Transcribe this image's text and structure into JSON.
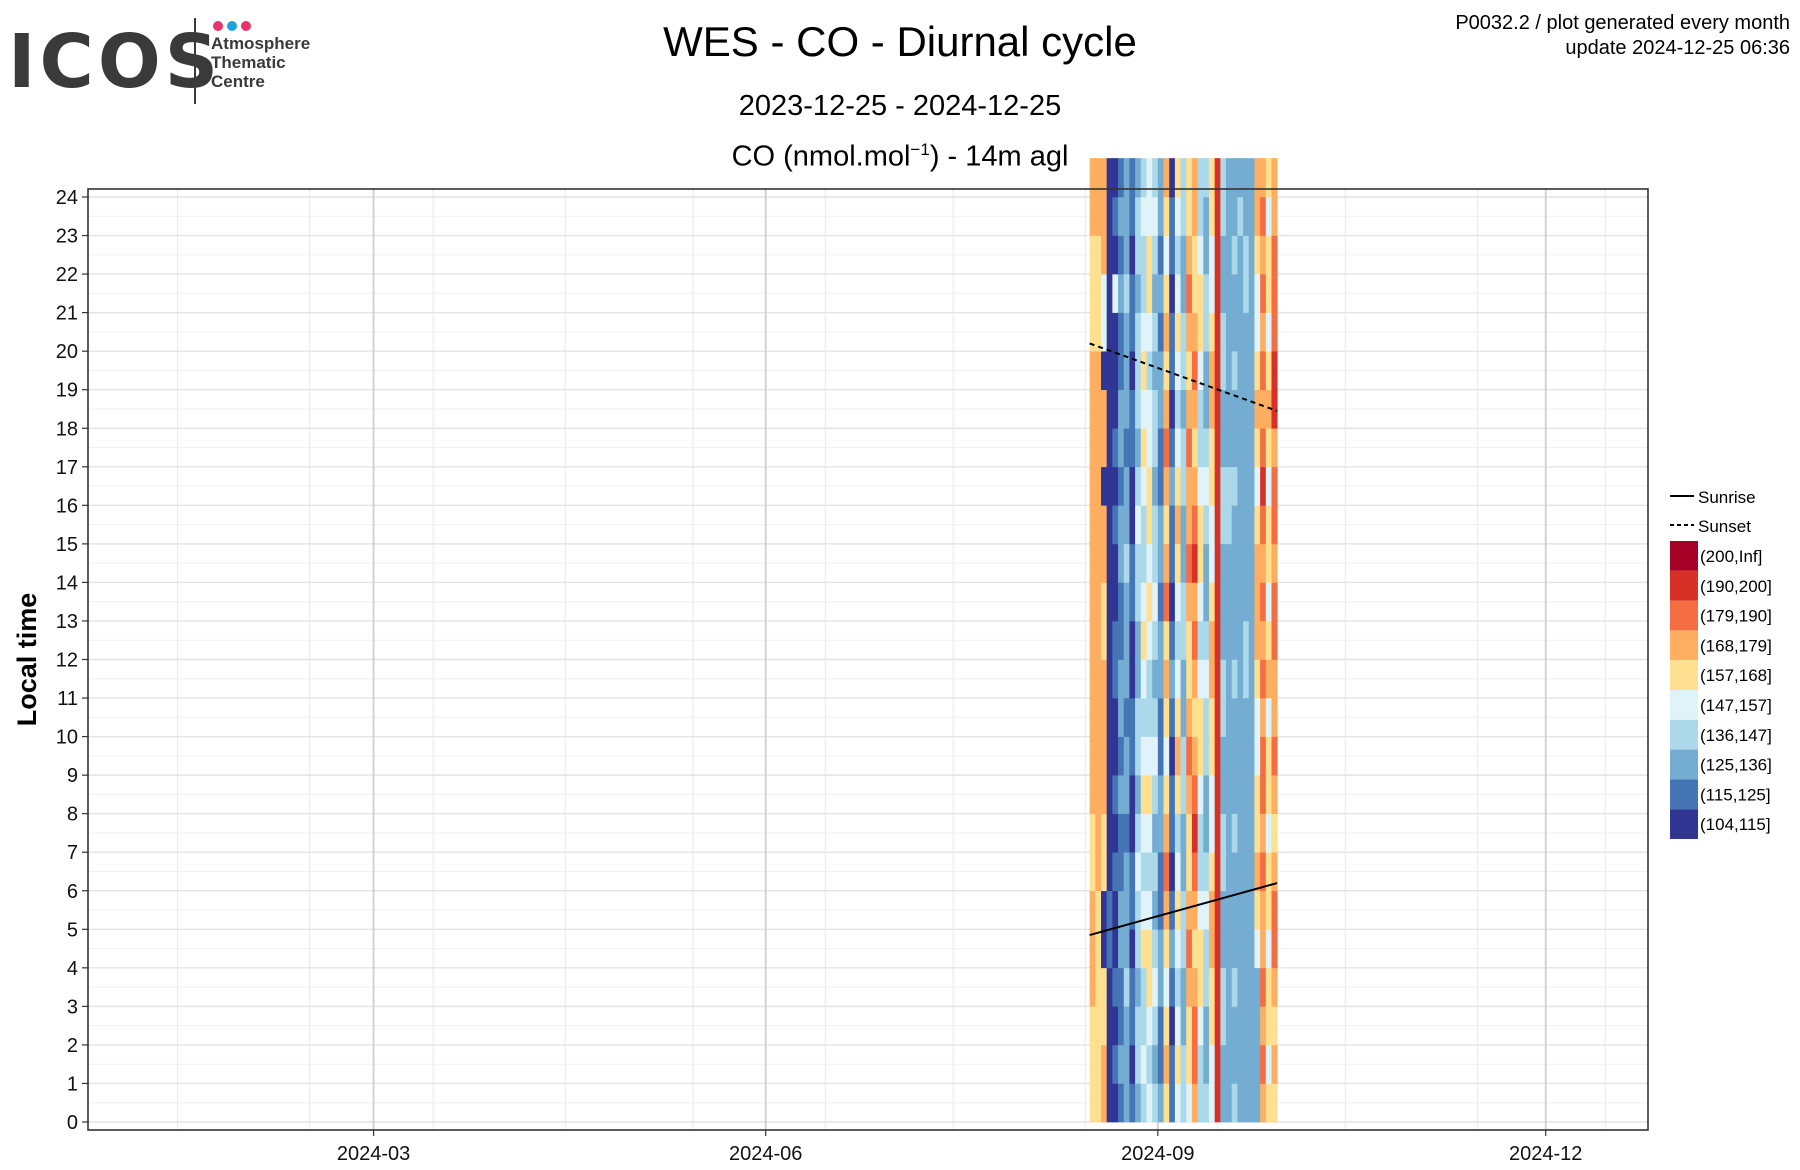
{
  "header": {
    "title": "WES - CO - Diurnal cycle",
    "subtitle": "2023-12-25 - 2024-12-25",
    "variable_title_pre": "CO (nmol.mol",
    "variable_title_sup": "−1",
    "variable_title_post": ") - 14m agl",
    "corner_line1": "P0032.2 / plot generated every month",
    "corner_line2": "update  2024-12-25 06:36"
  },
  "logo": {
    "word": "ICOS",
    "line1": "Atmosphere",
    "line2": "Thematic",
    "line3": "Centre",
    "dot_colors": [
      "#e8336d",
      "#1fa3de",
      "#e8336d"
    ]
  },
  "chart_data": {
    "type": "heatmap",
    "ylabel": "Local time",
    "xlabel": "",
    "xlim": [
      "2023-12-25",
      "2024-12-25"
    ],
    "ylim": [
      0,
      24
    ],
    "x_ticks": [
      "2024-03",
      "2024-06",
      "2024-09",
      "2024-12"
    ],
    "y_ticks": [
      "0",
      "1",
      "2",
      "3",
      "4",
      "5",
      "6",
      "7",
      "8",
      "9",
      "10",
      "11",
      "12",
      "13",
      "14",
      "15",
      "16",
      "17",
      "18",
      "19",
      "20",
      "21",
      "22",
      "23",
      "24"
    ],
    "grid": true,
    "legend_position": "right",
    "legend_lines": [
      {
        "label": "Sunrise",
        "style": "solid"
      },
      {
        "label": "Sunset",
        "style": "dashed"
      }
    ],
    "bins": [
      {
        "label": "(200,Inf]",
        "color": "#a50026"
      },
      {
        "label": "(190,200]",
        "color": "#d73027"
      },
      {
        "label": "(179,190]",
        "color": "#f46d43"
      },
      {
        "label": "(168,179]",
        "color": "#fdae61"
      },
      {
        "label": "(157,168]",
        "color": "#fee090"
      },
      {
        "label": "(147,157]",
        "color": "#e0f3f8"
      },
      {
        "label": "(136,147]",
        "color": "#abd9e9"
      },
      {
        "label": "(125,136]",
        "color": "#74add1"
      },
      {
        "label": "(115,125]",
        "color": "#4575b4"
      },
      {
        "label": "(104,115]",
        "color": "#313695"
      }
    ],
    "data_period": {
      "start": "2024-08-16",
      "end": "2024-09-29"
    },
    "sunrise": [
      {
        "date": "2024-08-16",
        "hour": 4.85
      },
      {
        "date": "2024-09-29",
        "hour": 6.2
      }
    ],
    "sunset": [
      {
        "date": "2024-08-16",
        "hour": 20.2
      },
      {
        "date": "2024-09-29",
        "hour": 18.45
      }
    ],
    "columns": [
      [
        "4",
        "4",
        "4",
        "3",
        "3",
        "3",
        "4",
        "4",
        "3",
        "3",
        "3",
        "3",
        "3",
        "3",
        "3",
        "3",
        "3",
        "3",
        "3",
        "3",
        "4",
        "4",
        "4",
        "3",
        "3"
      ],
      [
        "4",
        "4",
        "4",
        "4",
        "4",
        "4",
        "3",
        "3",
        "3",
        "3",
        "3",
        "3",
        "3",
        "3",
        "3",
        "3",
        "3",
        "3",
        "3",
        "3",
        "4",
        "4",
        "4",
        "3",
        "3"
      ],
      [
        "3",
        "3",
        "4",
        "4",
        "9",
        "9",
        "4",
        "4",
        "3",
        "3",
        "3",
        "3",
        "4",
        "4",
        "3",
        "3",
        "9",
        "3",
        "3",
        "9",
        "5",
        "5",
        "3",
        "3",
        "3"
      ],
      [
        "9",
        "9",
        "9",
        "9",
        "8",
        "8",
        "9",
        "9",
        "9",
        "9",
        "9",
        "9",
        "9",
        "9",
        "9",
        "9",
        "9",
        "9",
        "9",
        "9",
        "9",
        "9",
        "9",
        "9",
        "9"
      ],
      [
        "9",
        "8",
        "9",
        "8",
        "9",
        "9",
        "8",
        "9",
        "8",
        "9",
        "9",
        "8",
        "8",
        "9",
        "9",
        "8",
        "9",
        "8",
        "9",
        "9",
        "9",
        "5",
        "9",
        "8",
        "9"
      ],
      [
        "8",
        "7",
        "8",
        "8",
        "7",
        "7",
        "8",
        "8",
        "7",
        "8",
        "7",
        "7",
        "8",
        "8",
        "7",
        "7",
        "8",
        "7",
        "7",
        "8",
        "8",
        "7",
        "8",
        "7",
        "8"
      ],
      [
        "7",
        "7",
        "7",
        "6",
        "7",
        "7",
        "7",
        "8",
        "7",
        "7",
        "8",
        "7",
        "7",
        "7",
        "6",
        "7",
        "7",
        "8",
        "7",
        "7",
        "7",
        "6",
        "7",
        "7",
        "7"
      ],
      [
        "8",
        "9",
        "8",
        "8",
        "9",
        "8",
        "8",
        "9",
        "9",
        "8",
        "8",
        "9",
        "9",
        "8",
        "8",
        "9",
        "9",
        "8",
        "8",
        "9",
        "8",
        "8",
        "9",
        "8",
        "8"
      ],
      [
        "7",
        "6",
        "6",
        "7",
        "6",
        "6",
        "5",
        "6",
        "7",
        "6",
        "6",
        "7",
        "7",
        "6",
        "6",
        "5",
        "6",
        "7",
        "6",
        "6",
        "6",
        "7",
        "6",
        "6",
        "7"
      ],
      [
        "6",
        "5",
        "6",
        "6",
        "4",
        "5",
        "6",
        "5",
        "4",
        "5",
        "6",
        "5",
        "4",
        "5",
        "6",
        "6",
        "5",
        "4",
        "5",
        "4",
        "5",
        "6",
        "6",
        "5",
        "6"
      ],
      [
        "5",
        "6",
        "5",
        "4",
        "4",
        "5",
        "6",
        "5",
        "4",
        "5",
        "6",
        "6",
        "5",
        "4",
        "5",
        "4",
        "4",
        "5",
        "5",
        "6",
        "5",
        "4",
        "4",
        "5",
        "5"
      ],
      [
        "6",
        "7",
        "6",
        "5",
        "6",
        "7",
        "6",
        "7",
        "6",
        "5",
        "6",
        "7",
        "6",
        "5",
        "6",
        "6",
        "7",
        "6",
        "6",
        "7",
        "6",
        "7",
        "6",
        "5",
        "6"
      ],
      [
        "7",
        "8",
        "8",
        "7",
        "7",
        "8",
        "8",
        "7",
        "7",
        "8",
        "8",
        "7",
        "7",
        "8",
        "7",
        "7",
        "8",
        "8",
        "7",
        "7",
        "8",
        "7",
        "8",
        "7",
        "7"
      ],
      [
        "4",
        "3",
        "4",
        "5",
        "4",
        "3",
        "2",
        "3",
        "4",
        "5",
        "4",
        "3",
        "4",
        "2",
        "3",
        "4",
        "3",
        "2",
        "3",
        "4",
        "3",
        "4",
        "5",
        "4",
        "3"
      ],
      [
        "8",
        "8",
        "9",
        "8",
        "7",
        "8",
        "9",
        "8",
        "8",
        "9",
        "8",
        "7",
        "8",
        "9",
        "8",
        "8",
        "7",
        "8",
        "9",
        "8",
        "8",
        "9",
        "8",
        "8",
        "9"
      ],
      [
        "5",
        "4",
        "5",
        "6",
        "5",
        "4",
        "5",
        "6",
        "4",
        "3",
        "4",
        "5",
        "6",
        "5",
        "4",
        "3",
        "4",
        "5",
        "6",
        "5",
        "4",
        "5",
        "6",
        "5",
        "4"
      ],
      [
        "6",
        "6",
        "7",
        "7",
        "6",
        "6",
        "7",
        "7",
        "6",
        "6",
        "7",
        "7",
        "6",
        "6",
        "7",
        "7",
        "6",
        "6",
        "7",
        "6",
        "6",
        "7",
        "7",
        "6",
        "6"
      ],
      [
        "5",
        "4",
        "4",
        "3",
        "2",
        "3",
        "4",
        "4",
        "3",
        "2",
        "3",
        "4",
        "4",
        "3",
        "2",
        "3",
        "3",
        "2",
        "3",
        "4",
        "3",
        "2",
        "3",
        "4",
        "4"
      ],
      [
        "3",
        "2",
        "2",
        "3",
        "4",
        "3",
        "2",
        "1",
        "2",
        "3",
        "4",
        "3",
        "2",
        "3",
        "1",
        "2",
        "3",
        "4",
        "3",
        "2",
        "3",
        "4",
        "4",
        "3",
        "3"
      ],
      [
        "6",
        "6",
        "5",
        "4",
        "4",
        "5",
        "6",
        "6",
        "5",
        "4",
        "4",
        "5",
        "6",
        "5",
        "4",
        "4",
        "5",
        "6",
        "6",
        "5",
        "4",
        "4",
        "5",
        "6",
        "6"
      ],
      [
        "6",
        "7",
        "7",
        "6",
        "6",
        "5",
        "6",
        "7",
        "7",
        "6",
        "6",
        "5",
        "6",
        "7",
        "7",
        "6",
        "5",
        "6",
        "7",
        "7",
        "6",
        "6",
        "7",
        "7",
        "6"
      ],
      [
        "5",
        "5",
        "4",
        "4",
        "3",
        "3",
        "4",
        "5",
        "5",
        "4",
        "4",
        "3",
        "3",
        "4",
        "5",
        "5",
        "4",
        "4",
        "3",
        "3",
        "4",
        "5",
        "5",
        "4",
        "4"
      ],
      [
        "1",
        "1",
        "1",
        "1",
        "1",
        "1",
        "1",
        "1",
        "1",
        "1",
        "1",
        "1",
        "1",
        "1",
        "1",
        "1",
        "1",
        "1",
        "1",
        "1",
        "1",
        "1",
        "1",
        "1",
        "1"
      ],
      [
        "7",
        "7",
        "6",
        "6",
        "7",
        "7",
        "6",
        "6",
        "7",
        "7",
        "6",
        "6",
        "7",
        "7",
        "7",
        "6",
        "6",
        "7",
        "7",
        "6",
        "6",
        "7",
        "7",
        "6",
        "6"
      ],
      [
        "7",
        "7",
        "7",
        "7",
        "7",
        "7",
        "7",
        "7",
        "7",
        "7",
        "7",
        "7",
        "7",
        "7",
        "7",
        "6",
        "6",
        "7",
        "7",
        "7",
        "7",
        "7",
        "7",
        "7",
        "7"
      ],
      [
        "6",
        "7",
        "7",
        "6",
        "7",
        "7",
        "7",
        "6",
        "7",
        "7",
        "7",
        "6",
        "7",
        "7",
        "7",
        "7",
        "6",
        "7",
        "7",
        "6",
        "7",
        "7",
        "6",
        "7",
        "7"
      ],
      [
        "7",
        "7",
        "7",
        "7",
        "7",
        "7",
        "7",
        "7",
        "7",
        "7",
        "7",
        "7",
        "7",
        "7",
        "7",
        "7",
        "7",
        "7",
        "7",
        "7",
        "7",
        "7",
        "7",
        "6",
        "7"
      ],
      [
        "7",
        "7",
        "7",
        "7",
        "7",
        "7",
        "7",
        "7",
        "7",
        "7",
        "7",
        "6",
        "6",
        "7",
        "7",
        "7",
        "7",
        "7",
        "7",
        "7",
        "7",
        "6",
        "6",
        "7",
        "7"
      ],
      [
        "7",
        "7",
        "7",
        "7",
        "7",
        "7",
        "7",
        "7",
        "7",
        "7",
        "7",
        "7",
        "7",
        "7",
        "7",
        "7",
        "7",
        "7",
        "7",
        "7",
        "7",
        "7",
        "7",
        "7",
        "7"
      ],
      [
        "7",
        "7",
        "7",
        "7",
        "5",
        "4",
        "3",
        "4",
        "4",
        "5",
        "5",
        "4",
        "3",
        "3",
        "3",
        "4",
        "5",
        "4",
        "3",
        "4",
        "5",
        "5",
        "4",
        "3",
        "3"
      ],
      [
        "3",
        "2",
        "3",
        "2",
        "3",
        "3",
        "2",
        "3",
        "2",
        "2",
        "3",
        "2",
        "3",
        "2",
        "3",
        "2",
        "1",
        "2",
        "3",
        "2",
        "3",
        "2",
        "3",
        "2",
        "3"
      ],
      [
        "4",
        "5",
        "4",
        "4",
        "5",
        "4",
        "4",
        "5",
        "4",
        "4",
        "5",
        "3",
        "4",
        "5",
        "4",
        "4",
        "5",
        "4",
        "3",
        "4",
        "5",
        "4",
        "4",
        "5",
        "4"
      ],
      [
        "4",
        "3",
        "4",
        "3",
        "2",
        "2",
        "3",
        "4",
        "3",
        "2",
        "3",
        "3",
        "2",
        "2",
        "3",
        "2",
        "2",
        "3",
        "1",
        "1",
        "2",
        "2",
        "2",
        "3",
        "3"
      ]
    ]
  }
}
